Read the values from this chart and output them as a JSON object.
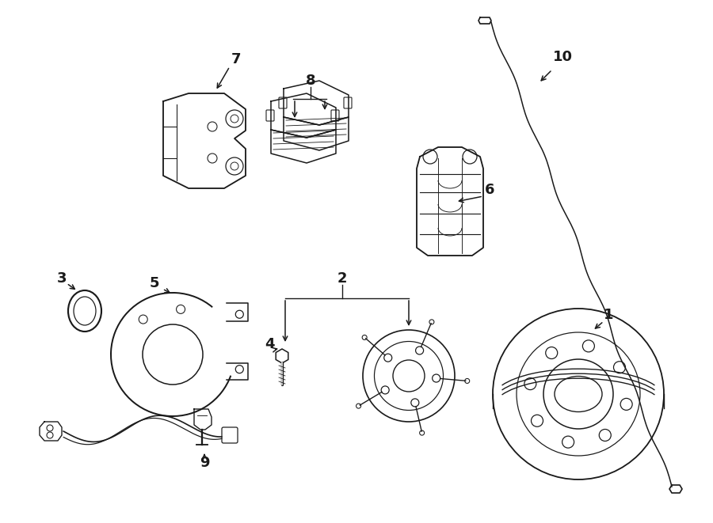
{
  "bg_color": "#ffffff",
  "line_color": "#1a1a1a",
  "fig_width": 9.0,
  "fig_height": 6.61,
  "dpi": 100,
  "lw": 1.1
}
